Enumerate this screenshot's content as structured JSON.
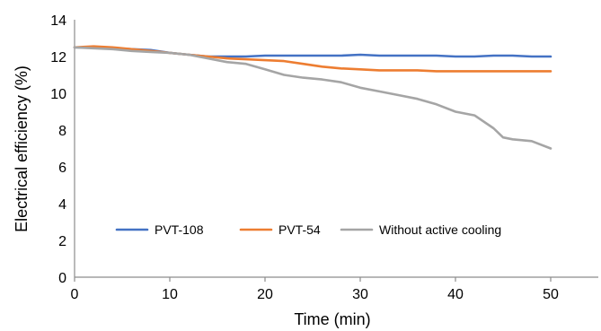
{
  "chart_data": {
    "type": "line",
    "title": "",
    "xlabel": "Time (min)",
    "ylabel": "Electrical efficiency (%)",
    "xlim": [
      0,
      50
    ],
    "ylim": [
      0,
      14
    ],
    "x_ticks": [
      0,
      10,
      20,
      30,
      40,
      50
    ],
    "y_ticks": [
      0,
      2,
      4,
      6,
      8,
      10,
      12,
      14
    ],
    "grid": false,
    "legend_position": "inside-bottom",
    "series": [
      {
        "name": "PVT-108",
        "color": "#4472c4",
        "points": [
          [
            0,
            12.5
          ],
          [
            2,
            12.5
          ],
          [
            4,
            12.45
          ],
          [
            6,
            12.4
          ],
          [
            8,
            12.35
          ],
          [
            10,
            12.2
          ],
          [
            12,
            12.1
          ],
          [
            14,
            12.0
          ],
          [
            16,
            12.0
          ],
          [
            18,
            12.0
          ],
          [
            20,
            12.05
          ],
          [
            22,
            12.05
          ],
          [
            24,
            12.05
          ],
          [
            26,
            12.05
          ],
          [
            28,
            12.05
          ],
          [
            30,
            12.1
          ],
          [
            32,
            12.05
          ],
          [
            34,
            12.05
          ],
          [
            36,
            12.05
          ],
          [
            38,
            12.05
          ],
          [
            40,
            12.0
          ],
          [
            42,
            12.0
          ],
          [
            44,
            12.05
          ],
          [
            46,
            12.05
          ],
          [
            48,
            12.0
          ],
          [
            50,
            12.0
          ]
        ]
      },
      {
        "name": "PVT-54",
        "color": "#ed7d31",
        "points": [
          [
            0,
            12.5
          ],
          [
            2,
            12.55
          ],
          [
            4,
            12.5
          ],
          [
            6,
            12.4
          ],
          [
            8,
            12.3
          ],
          [
            10,
            12.2
          ],
          [
            12,
            12.1
          ],
          [
            14,
            12.0
          ],
          [
            16,
            11.9
          ],
          [
            18,
            11.85
          ],
          [
            20,
            11.8
          ],
          [
            22,
            11.75
          ],
          [
            24,
            11.6
          ],
          [
            26,
            11.45
          ],
          [
            28,
            11.35
          ],
          [
            30,
            11.3
          ],
          [
            32,
            11.25
          ],
          [
            34,
            11.25
          ],
          [
            36,
            11.25
          ],
          [
            38,
            11.2
          ],
          [
            40,
            11.2
          ],
          [
            42,
            11.2
          ],
          [
            44,
            11.2
          ],
          [
            46,
            11.2
          ],
          [
            48,
            11.2
          ],
          [
            50,
            11.2
          ]
        ]
      },
      {
        "name": "Without active cooling",
        "color": "#a5a5a5",
        "points": [
          [
            0,
            12.5
          ],
          [
            2,
            12.45
          ],
          [
            4,
            12.4
          ],
          [
            6,
            12.3
          ],
          [
            8,
            12.25
          ],
          [
            10,
            12.2
          ],
          [
            12,
            12.1
          ],
          [
            14,
            11.9
          ],
          [
            16,
            11.7
          ],
          [
            18,
            11.6
          ],
          [
            20,
            11.3
          ],
          [
            22,
            11.0
          ],
          [
            24,
            10.85
          ],
          [
            26,
            10.75
          ],
          [
            28,
            10.6
          ],
          [
            30,
            10.3
          ],
          [
            32,
            10.1
          ],
          [
            34,
            9.9
          ],
          [
            36,
            9.7
          ],
          [
            38,
            9.4
          ],
          [
            40,
            9.0
          ],
          [
            42,
            8.8
          ],
          [
            44,
            8.1
          ],
          [
            45,
            7.6
          ],
          [
            46,
            7.5
          ],
          [
            48,
            7.4
          ],
          [
            50,
            7.0
          ]
        ]
      }
    ]
  }
}
